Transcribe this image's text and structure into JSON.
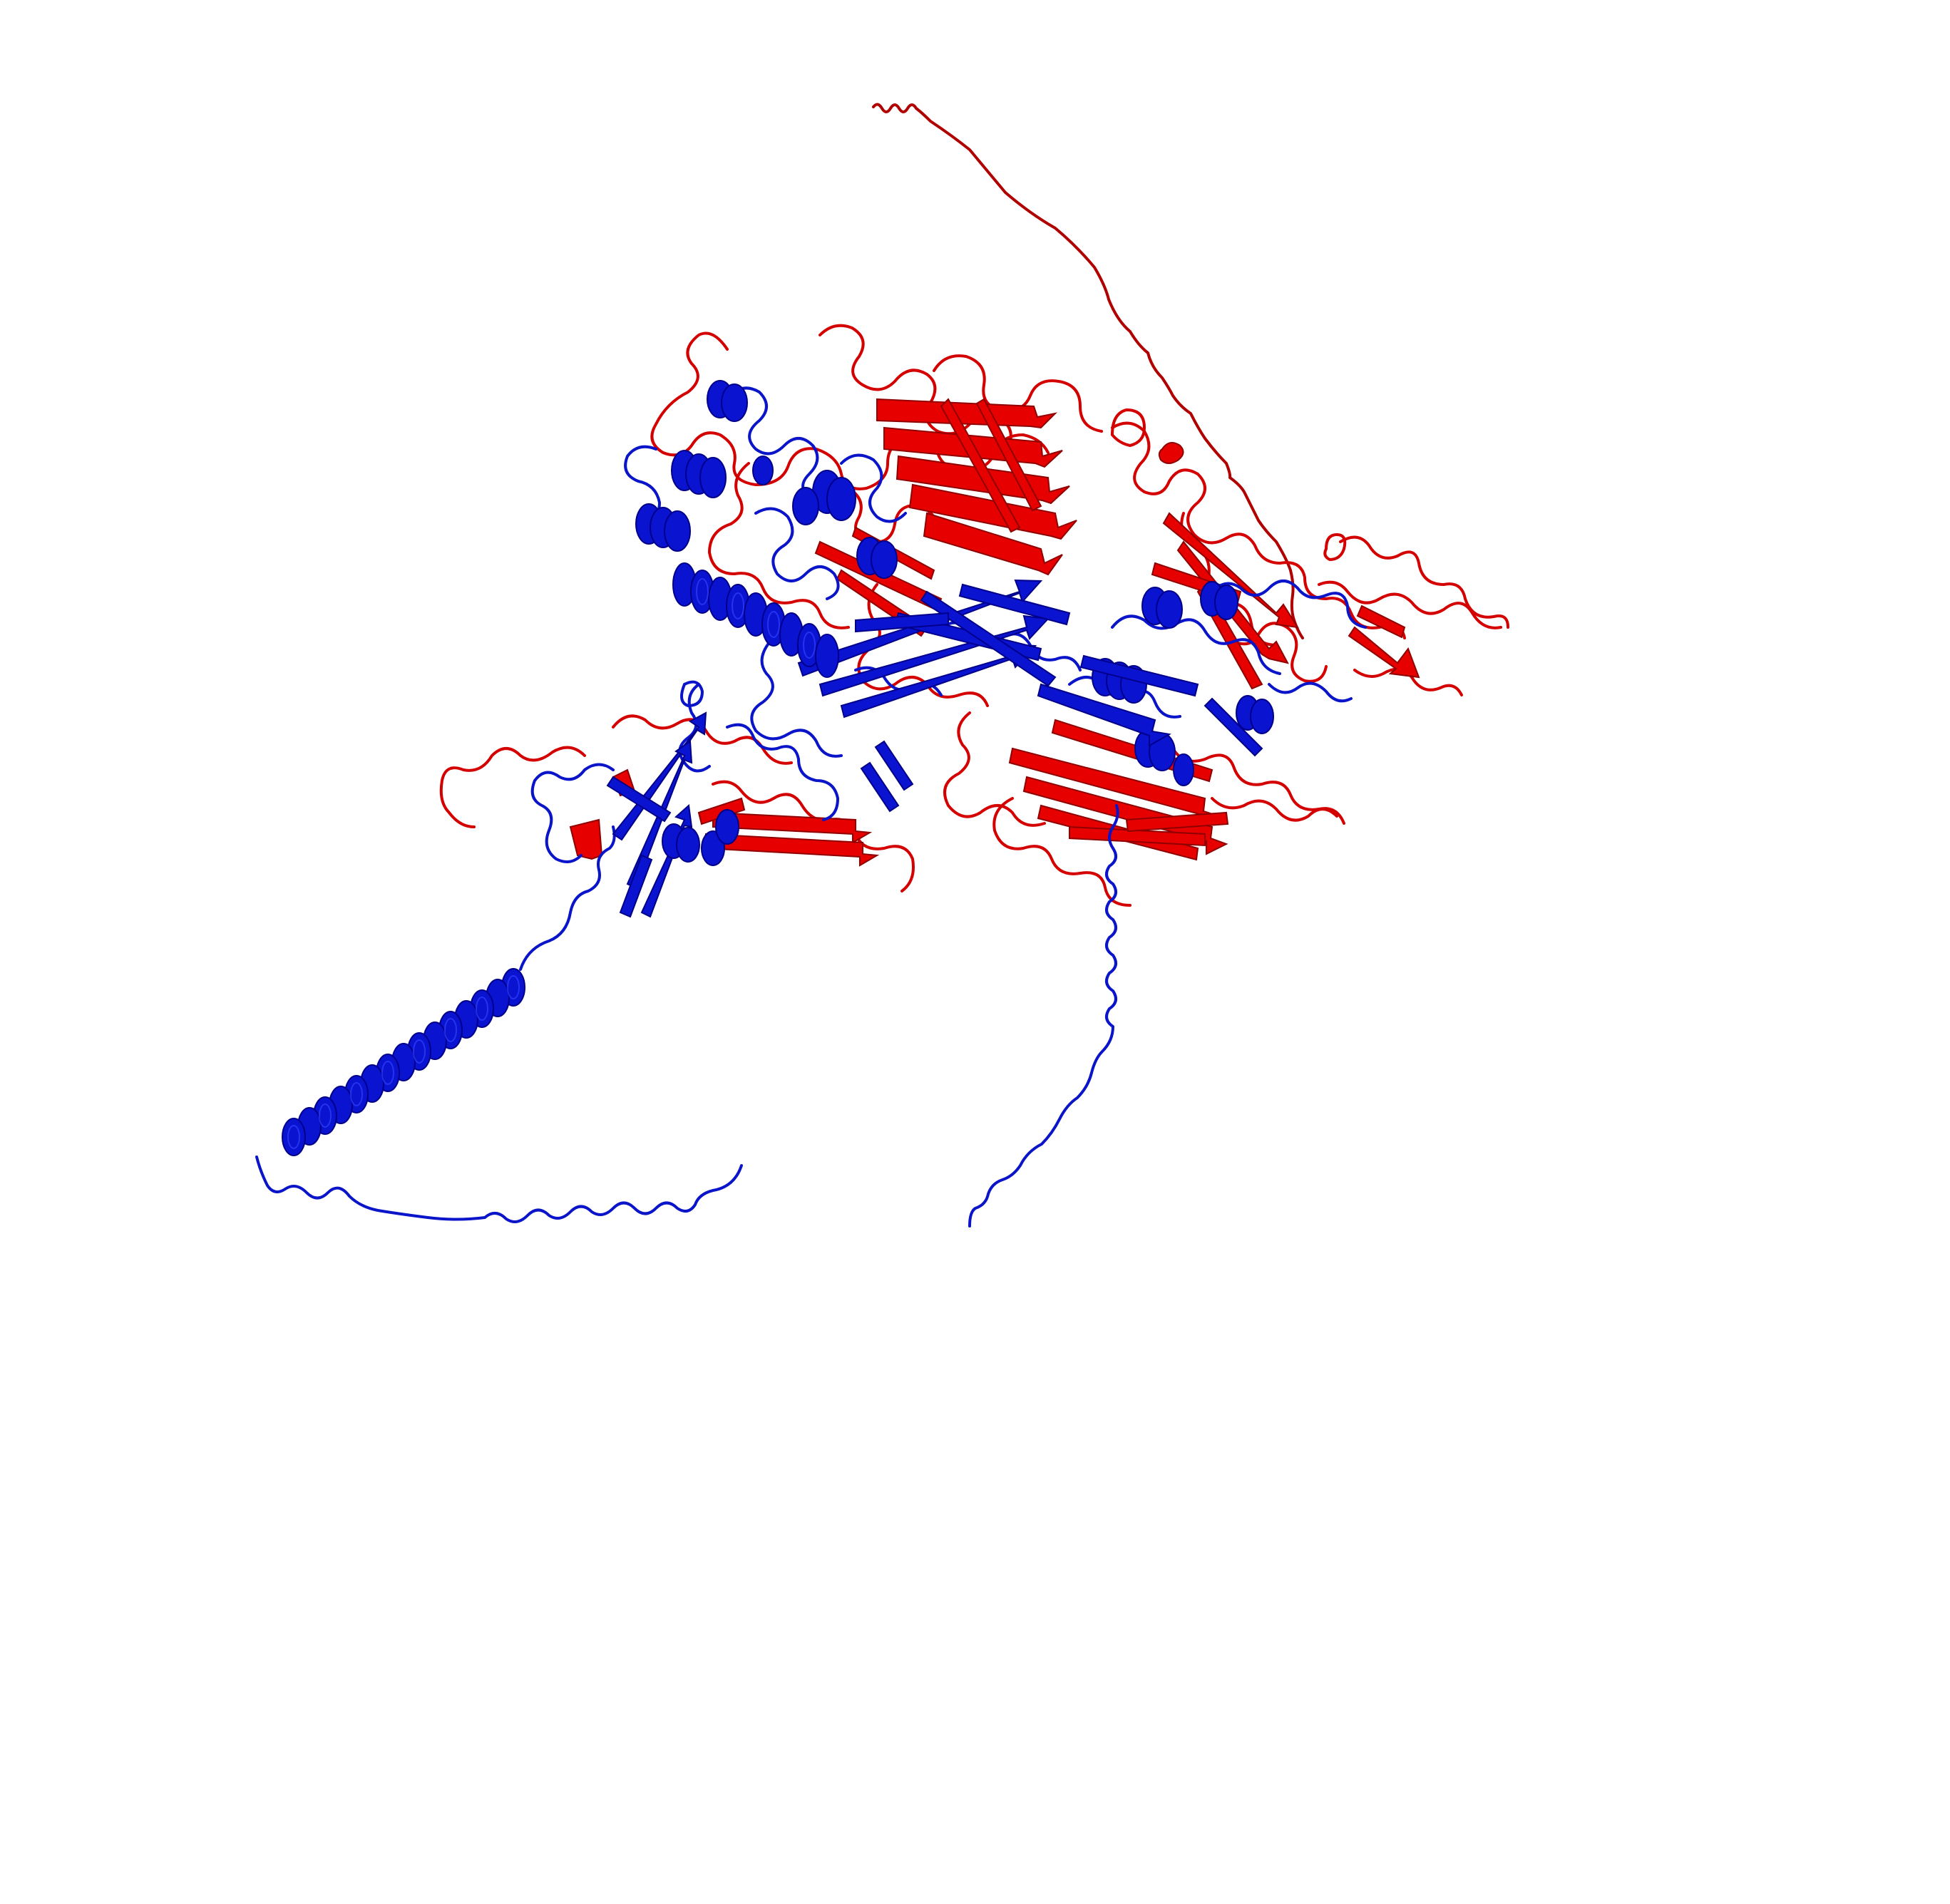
{
  "image": {
    "background": "#ffffff",
    "subject": "protein-ribbon-structure",
    "chains": [
      {
        "id": "chain-blue",
        "color": "#0a14c8"
      },
      {
        "id": "chain-red",
        "color": "#e01010"
      }
    ],
    "dark_blue": "#00008b",
    "dark_red": "#a00000"
  }
}
